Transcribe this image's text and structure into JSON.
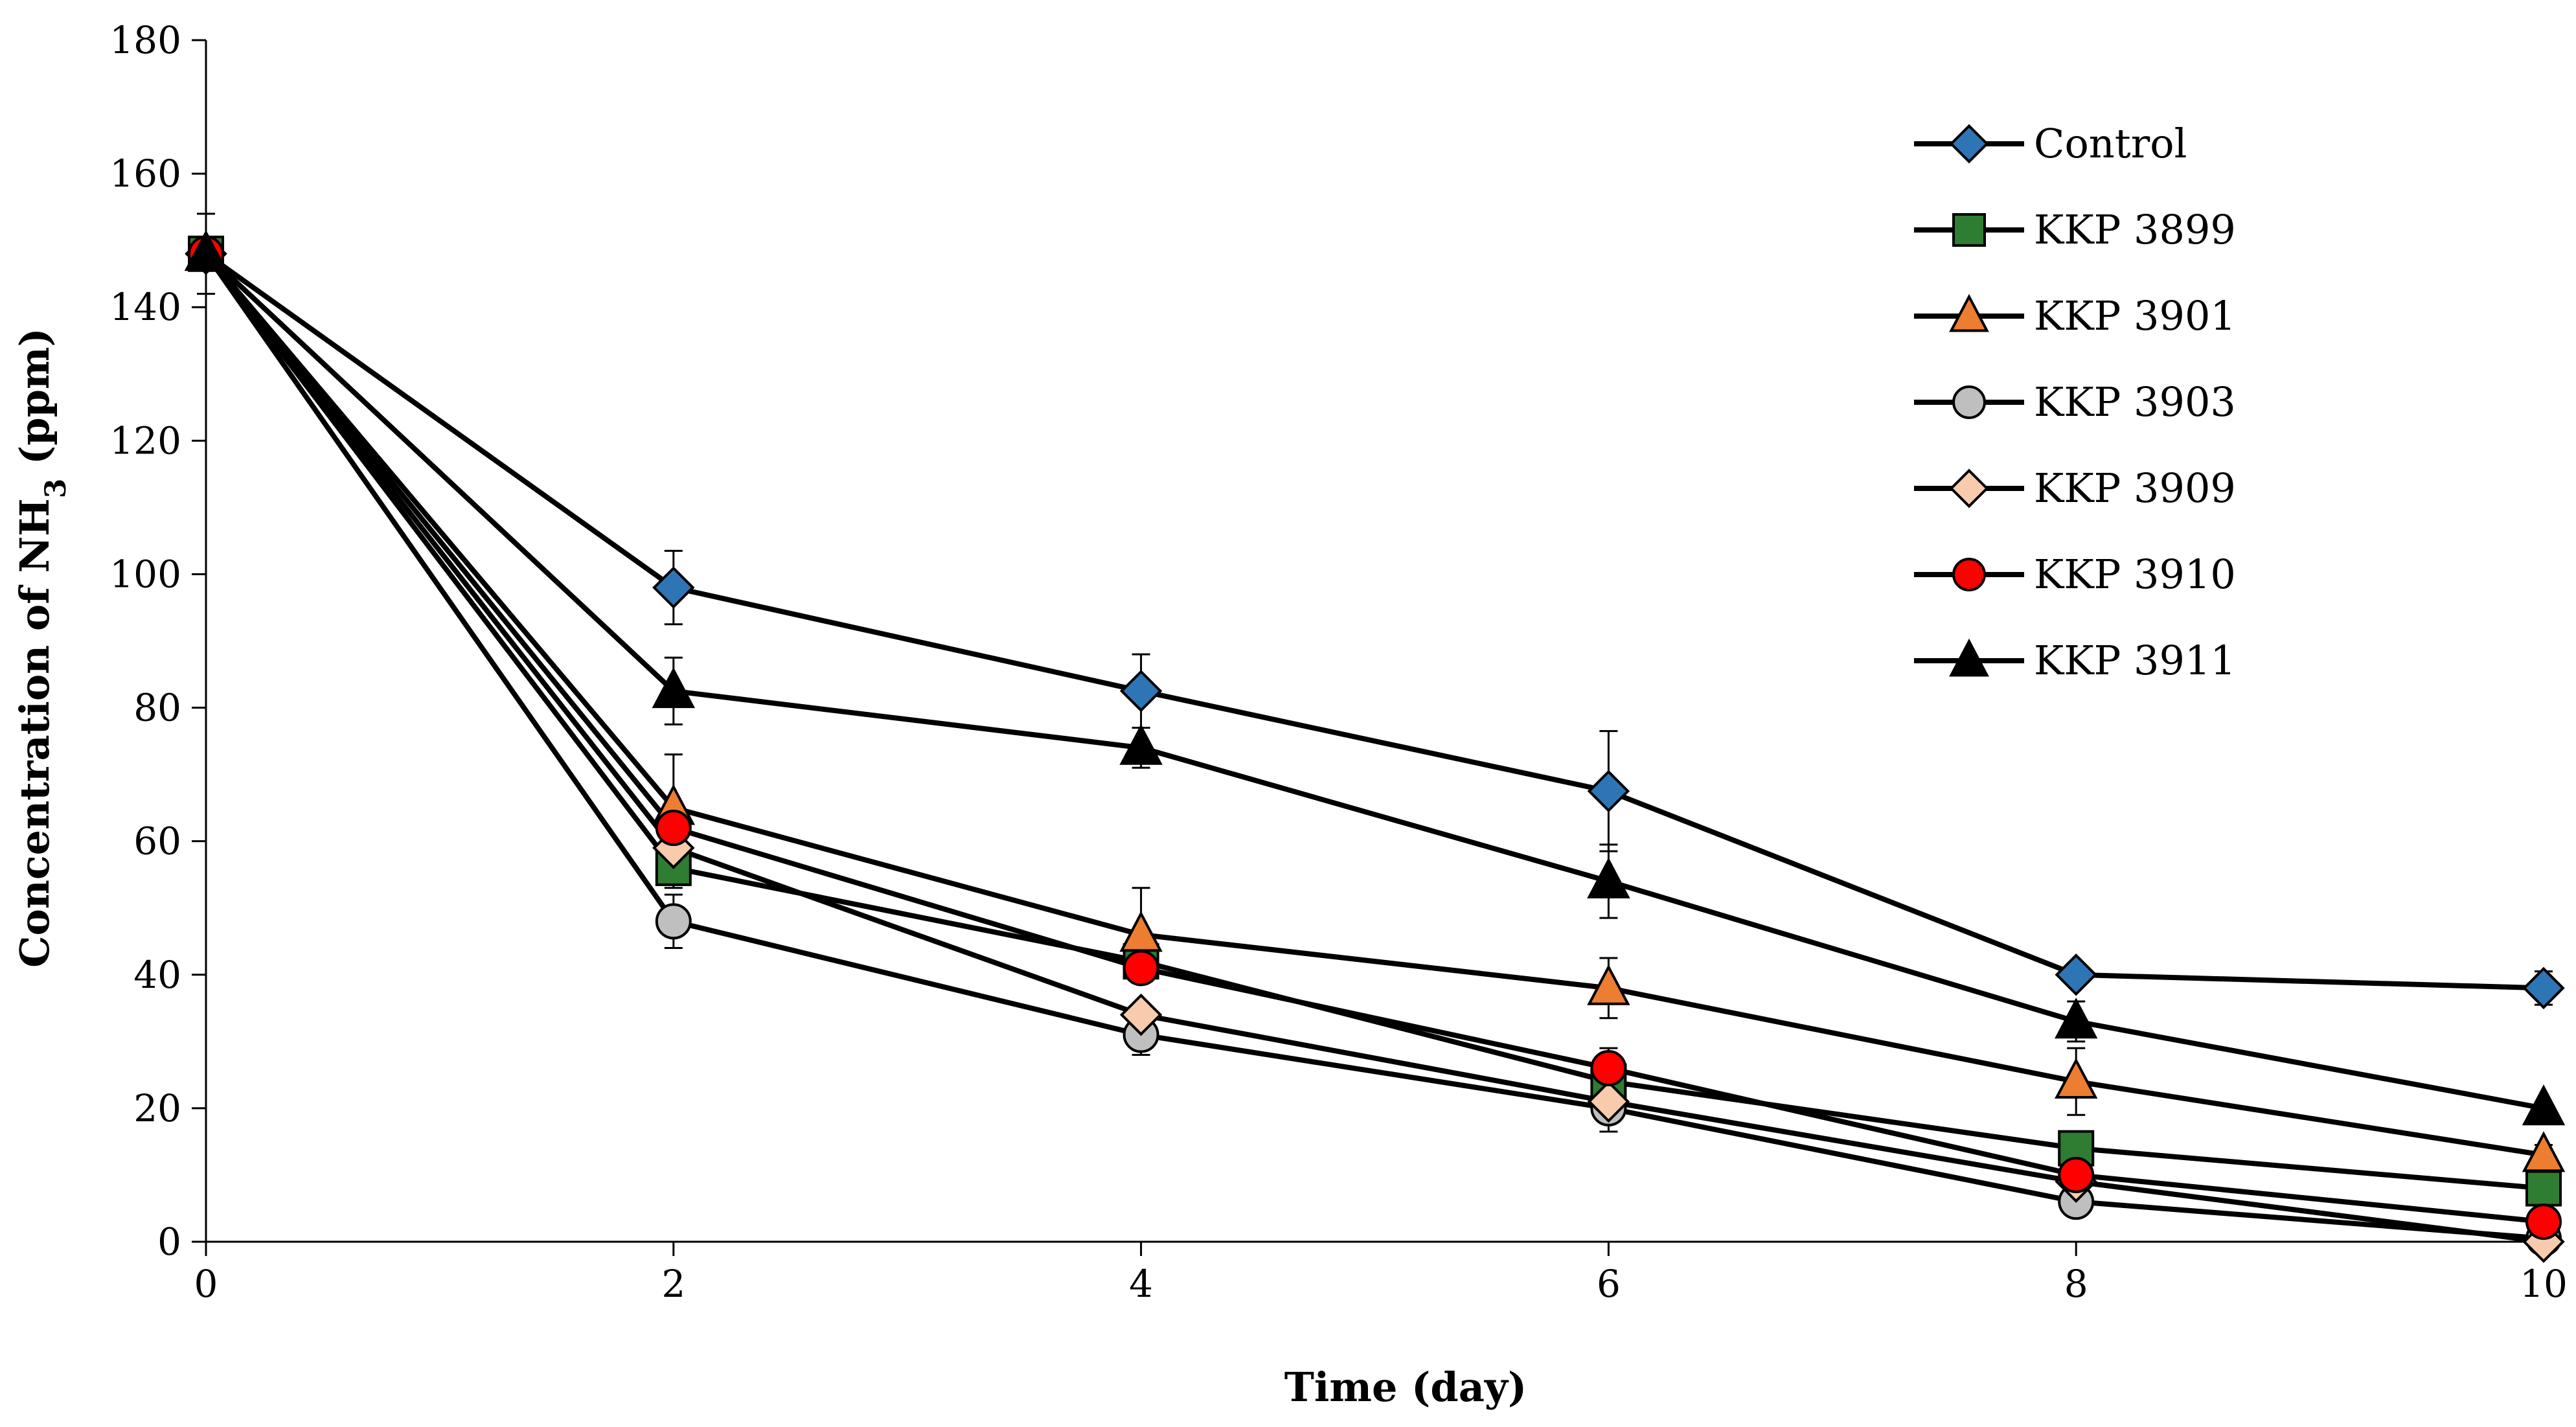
{
  "chart_data": {
    "type": "line",
    "title": "",
    "xlabel": "Time (day)",
    "ylabel": "Concentration of NH3 (ppm)",
    "ylabel_parts": {
      "main": "Concentration of NH",
      "sub": "3",
      "tail": " (ppm)"
    },
    "xlim": [
      0,
      10
    ],
    "ylim": [
      0,
      180
    ],
    "x_ticks": [
      "0",
      "2",
      "4",
      "6",
      "8",
      "10"
    ],
    "y_ticks": [
      "0",
      "20",
      "40",
      "60",
      "80",
      "100",
      "120",
      "140",
      "160",
      "180"
    ],
    "legend_position": "top-right",
    "x": [
      0,
      2,
      4,
      6,
      8,
      10
    ],
    "series": [
      {
        "name": "Control",
        "marker": "diamond",
        "color": "#2E75B6",
        "values": [
          148,
          98,
          82.5,
          67.5,
          40,
          38
        ],
        "errors": [
          6,
          5.5,
          5.5,
          9,
          0,
          2.5
        ]
      },
      {
        "name": "KKP 3899",
        "marker": "square",
        "color": "#2E7D32",
        "values": [
          148,
          56,
          42,
          24,
          14,
          8
        ],
        "errors": [
          0,
          3,
          2,
          3,
          0,
          1.5
        ]
      },
      {
        "name": "KKP 3901",
        "marker": "triangle",
        "color": "#ED7D31",
        "values": [
          148,
          65,
          46,
          38,
          24,
          13
        ],
        "errors": [
          0,
          8,
          7,
          4.5,
          5,
          1.5
        ]
      },
      {
        "name": "KKP 3903",
        "marker": "circle",
        "color": "#BFBFBF",
        "values": [
          148,
          48,
          31,
          20,
          6,
          0.5
        ],
        "errors": [
          0,
          4,
          3,
          3.5,
          0,
          0
        ]
      },
      {
        "name": "KKP 3909",
        "marker": "diamond",
        "color": "#F8CBAD",
        "values": [
          148,
          59,
          34,
          21,
          9,
          0
        ],
        "errors": [
          0,
          0,
          0,
          2,
          0,
          0
        ]
      },
      {
        "name": "KKP 3910",
        "marker": "circle",
        "color": "#FF0000",
        "values": [
          148,
          62,
          41,
          26,
          10,
          3
        ],
        "errors": [
          0,
          0,
          0,
          3,
          0,
          0
        ]
      },
      {
        "name": "KKP 3911",
        "marker": "triangle",
        "color": "#000000",
        "values": [
          148,
          82.5,
          74,
          54,
          33,
          20
        ],
        "errors": [
          0,
          5,
          3,
          5.5,
          3,
          0
        ]
      }
    ]
  }
}
